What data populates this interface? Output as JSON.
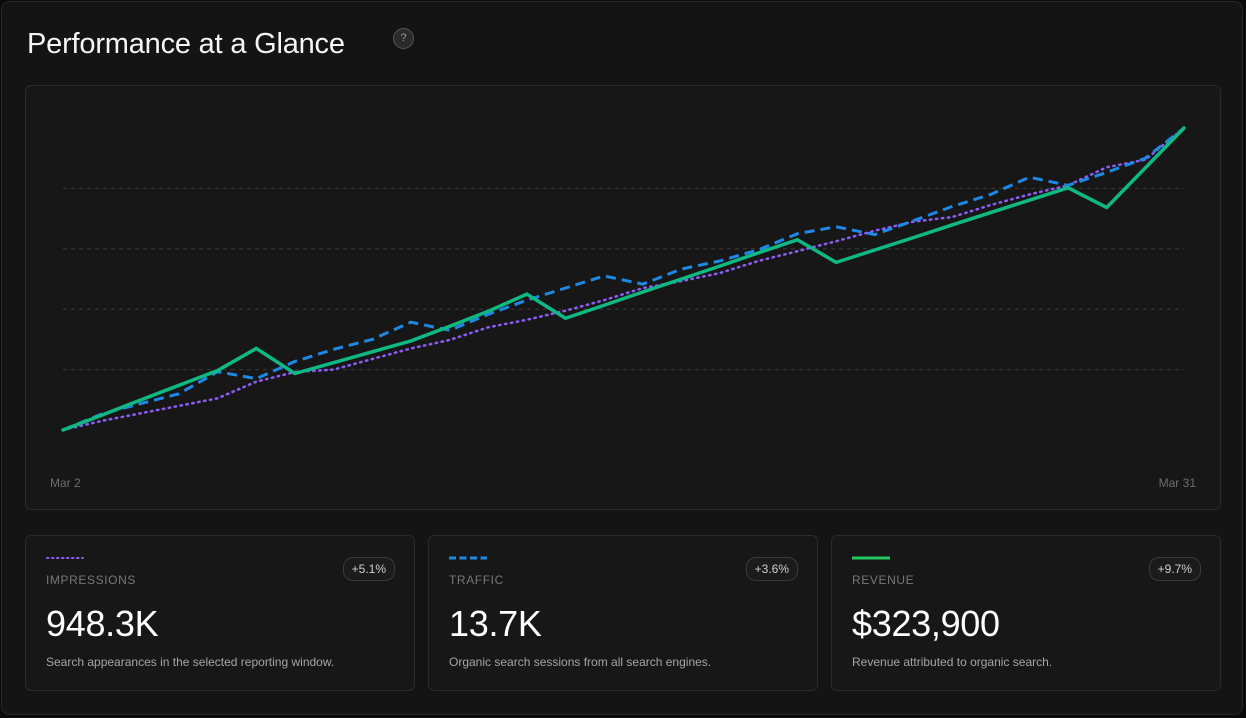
{
  "header": {
    "title": "Performance at a Glance",
    "help_icon": "?"
  },
  "colors": {
    "impressions": "#8b5cf6",
    "traffic": "#1e88e5",
    "revenue": "#10b981",
    "revenue_swatch": "#22c55e"
  },
  "chart_data": {
    "type": "line",
    "x_labels": {
      "start": "Mar 2",
      "end": "Mar 31"
    },
    "grid": true,
    "gridlines_y": [
      20,
      40,
      60,
      80
    ],
    "ylim": [
      0,
      100
    ],
    "x": [
      2,
      3,
      4,
      5,
      6,
      7,
      8,
      9,
      10,
      11,
      12,
      13,
      14,
      15,
      16,
      17,
      18,
      19,
      20,
      21,
      22,
      23,
      24,
      25,
      26,
      27,
      28,
      29,
      30,
      31
    ],
    "series": [
      {
        "key": "impressions",
        "style": "dotted",
        "values": [
          0.0,
          3.0,
          5.5,
          8.0,
          10.5,
          16.0,
          19.2,
          20.0,
          23.5,
          27.0,
          29.8,
          34.0,
          36.5,
          39.5,
          43.0,
          47.0,
          49.3,
          52.0,
          56.0,
          59.2,
          62.5,
          66.0,
          69.0,
          70.5,
          74.5,
          78.0,
          81.0,
          87.0,
          89.5,
          100.0
        ]
      },
      {
        "key": "traffic",
        "style": "dashed",
        "values": [
          0.0,
          5.3,
          8.7,
          12.0,
          19.3,
          17.0,
          22.7,
          26.7,
          30.0,
          35.7,
          33.0,
          38.3,
          43.0,
          47.0,
          51.0,
          48.3,
          53.3,
          56.0,
          59.7,
          65.0,
          67.3,
          64.7,
          69.3,
          74.0,
          78.0,
          83.7,
          81.0,
          85.3,
          90.0,
          100.0
        ]
      },
      {
        "key": "revenue",
        "style": "solid",
        "values": [
          0.0,
          4.9,
          9.9,
          14.8,
          19.7,
          27.0,
          18.7,
          22.3,
          25.9,
          29.5,
          34.3,
          39.3,
          45.0,
          37.0,
          41.3,
          45.7,
          50.0,
          54.3,
          58.7,
          63.0,
          55.5,
          59.6,
          63.7,
          67.9,
          72.0,
          76.1,
          80.2,
          73.7,
          86.8,
          100.0
        ]
      }
    ]
  },
  "stats": [
    {
      "swatch": "dotted",
      "label": "IMPRESSIONS",
      "delta": "+5.1%",
      "value": "948.3K",
      "description": "Search appearances in the selected reporting window."
    },
    {
      "swatch": "dashed",
      "label": "TRAFFIC",
      "delta": "+3.6%",
      "value": "13.7K",
      "description": "Organic search sessions from all search engines."
    },
    {
      "swatch": "solid",
      "label": "REVENUE",
      "delta": "+9.7%",
      "value": "$323,900",
      "description": "Revenue attributed to organic search."
    }
  ]
}
